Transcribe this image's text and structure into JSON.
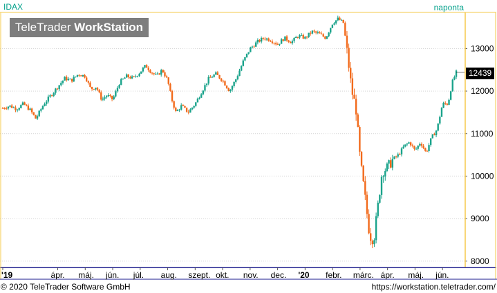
{
  "header": {
    "symbol": "IDAX",
    "interval": "naponta"
  },
  "logo": {
    "part1": "TeleTrader ",
    "part2": "WorkStation"
  },
  "footer": {
    "copyright": "© 2020 TeleTrader Software GmbH",
    "url": "https://workstation.teletrader.com/"
  },
  "last_price": "12439",
  "colors": {
    "up": "#1aa38b",
    "down": "#f26a1b",
    "accent": "#00a08a",
    "axis_line": "#f5c84a",
    "bottom_axis": "#1a1a8c"
  },
  "chart_data": {
    "type": "candlestick",
    "y_ticks": [
      8000,
      9000,
      10000,
      11000,
      12000,
      13000
    ],
    "y_tick_labels": [
      "8000",
      "9000",
      "10000",
      "11000",
      "12000",
      "13000"
    ],
    "ylim": [
      7850,
      13850
    ],
    "x_labels": [
      "'19",
      "ápr.",
      "máj.",
      "jún.",
      "júl.",
      "aug.",
      "szept.",
      "okt.",
      "nov.",
      "dec.",
      "'20",
      "febr.",
      "márc.",
      "ápr.",
      "máj.",
      "jún."
    ],
    "x_label_positions": [
      0,
      2,
      3,
      4,
      5,
      6,
      7,
      8,
      9,
      10,
      11,
      12,
      13,
      14,
      15,
      16
    ],
    "x_range": [
      0,
      16.7
    ],
    "grid": true,
    "series": [
      {
        "points": [
          [
            0.0,
            11600
          ],
          [
            0.25,
            11650
          ],
          [
            0.5,
            11580
          ],
          [
            0.75,
            11700
          ],
          [
            1.0,
            11550
          ],
          [
            1.2,
            11350
          ],
          [
            1.5,
            11700
          ],
          [
            1.75,
            11900
          ],
          [
            2.0,
            12100
          ],
          [
            2.25,
            12300
          ],
          [
            2.5,
            12250
          ],
          [
            2.75,
            12400
          ],
          [
            3.0,
            12350
          ],
          [
            3.2,
            12050
          ],
          [
            3.4,
            12100
          ],
          [
            3.6,
            11800
          ],
          [
            3.8,
            11900
          ],
          [
            4.0,
            11800
          ],
          [
            4.25,
            12200
          ],
          [
            4.5,
            12350
          ],
          [
            4.75,
            12300
          ],
          [
            5.0,
            12450
          ],
          [
            5.2,
            12600
          ],
          [
            5.4,
            12450
          ],
          [
            5.6,
            12350
          ],
          [
            5.8,
            12500
          ],
          [
            6.0,
            12250
          ],
          [
            6.15,
            11800
          ],
          [
            6.3,
            11500
          ],
          [
            6.5,
            11650
          ],
          [
            6.75,
            11500
          ],
          [
            7.0,
            11700
          ],
          [
            7.25,
            12000
          ],
          [
            7.5,
            12300
          ],
          [
            7.75,
            12400
          ],
          [
            8.0,
            12250
          ],
          [
            8.25,
            12000
          ],
          [
            8.5,
            12300
          ],
          [
            8.75,
            12700
          ],
          [
            9.0,
            13000
          ],
          [
            9.25,
            13150
          ],
          [
            9.5,
            13250
          ],
          [
            9.75,
            13200
          ],
          [
            10.0,
            13100
          ],
          [
            10.25,
            13250
          ],
          [
            10.5,
            13150
          ],
          [
            10.75,
            13300
          ],
          [
            11.0,
            13250
          ],
          [
            11.25,
            13400
          ],
          [
            11.5,
            13350
          ],
          [
            11.75,
            13250
          ],
          [
            12.0,
            13600
          ],
          [
            12.2,
            13700
          ],
          [
            12.4,
            13600
          ],
          [
            12.55,
            12800
          ],
          [
            12.7,
            12000
          ],
          [
            12.85,
            11600
          ],
          [
            13.0,
            10400
          ],
          [
            13.2,
            9400
          ],
          [
            13.35,
            8600
          ],
          [
            13.5,
            8500
          ],
          [
            13.65,
            9300
          ],
          [
            13.8,
            10100
          ],
          [
            14.0,
            10200
          ],
          [
            14.2,
            10400
          ],
          [
            14.4,
            10500
          ],
          [
            14.6,
            10700
          ],
          [
            14.8,
            10800
          ],
          [
            15.0,
            10600
          ],
          [
            15.2,
            10800
          ],
          [
            15.4,
            10550
          ],
          [
            15.6,
            10900
          ],
          [
            15.8,
            11100
          ],
          [
            16.0,
            11700
          ],
          [
            16.2,
            11700
          ],
          [
            16.35,
            12200
          ],
          [
            16.5,
            12439
          ]
        ]
      }
    ]
  }
}
